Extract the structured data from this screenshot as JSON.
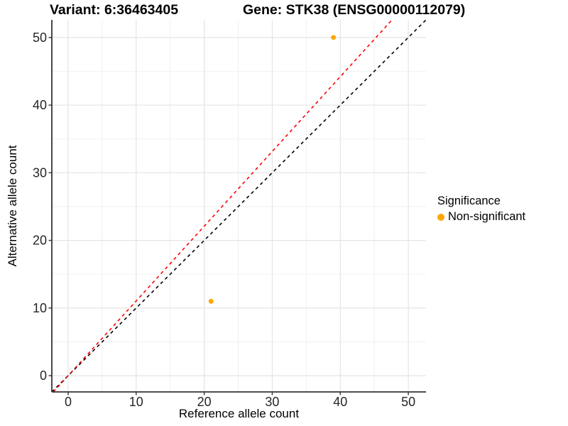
{
  "chart_data": {
    "type": "scatter",
    "titles": {
      "variant": "Variant: 6:36463405",
      "gene": "Gene: STK38 (ENSG00000112079)"
    },
    "xlabel": "Reference allele count",
    "ylabel": "Alternative allele count",
    "xticks": [
      0,
      10,
      20,
      30,
      40,
      50
    ],
    "yticks": [
      0,
      10,
      20,
      30,
      40,
      50
    ],
    "xlim": [
      -2.4,
      52.6
    ],
    "ylim": [
      -2.4,
      52.6
    ],
    "grid": {
      "major_color": "#e4e4e4",
      "minor_color": "#efefef",
      "minor_on": true
    },
    "points": [
      {
        "x": 21,
        "y": 11,
        "series": "Non-significant"
      },
      {
        "x": 39,
        "y": 50,
        "series": "Non-significant"
      }
    ],
    "point_color": "#FFA500",
    "point_radius": 3.4,
    "lines": [
      {
        "name": "identity-line",
        "slope": 1,
        "intercept": 0,
        "color": "#000000",
        "dashed": true
      },
      {
        "name": "expected-ratio-line",
        "slope": 1.105,
        "intercept": 0,
        "color": "#FF0000",
        "dashed": true
      }
    ],
    "axis": {
      "line_color": "#343434",
      "tick_color": "#343434",
      "tick_label_color": "#262626"
    },
    "legend": {
      "title": "Significance",
      "position": "right",
      "items": [
        {
          "label": "Non-significant",
          "color": "#FFA500"
        }
      ]
    }
  }
}
